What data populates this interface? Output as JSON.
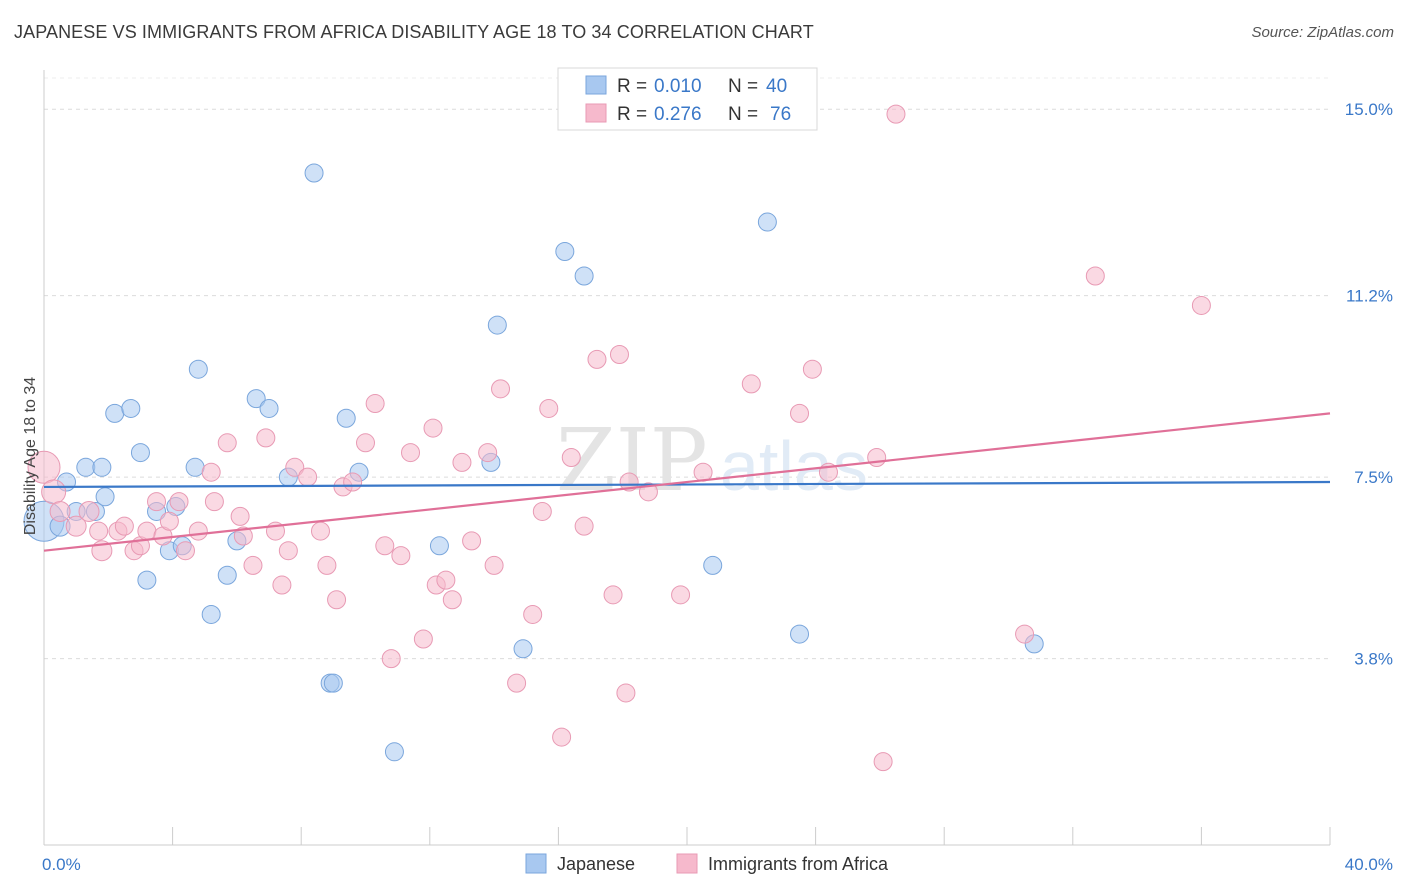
{
  "title": "JAPANESE VS IMMIGRANTS FROM AFRICA DISABILITY AGE 18 TO 34 CORRELATION CHART",
  "source": "Source: ZipAtlas.com",
  "watermark": {
    "zip": "ZIP",
    "atlas": "atlas"
  },
  "chart_data": {
    "type": "scatter",
    "ylabel": "Disability Age 18 to 34",
    "xlim": [
      0,
      40
    ],
    "ylim": [
      0,
      15.8
    ],
    "x_tick_labels": [
      "0.0%",
      "40.0%"
    ],
    "y_ticks": [
      3.8,
      7.5,
      11.2,
      15.0
    ],
    "y_tick_labels": [
      "3.8%",
      "7.5%",
      "11.2%",
      "15.0%"
    ],
    "grid": true,
    "legend": {
      "placement": "top-center",
      "entries": [
        {
          "r_label": "R =",
          "r_value": "0.010",
          "n_label": "N =",
          "n_value": "40"
        },
        {
          "r_label": "R =",
          "r_value": "0.276",
          "n_label": "N =",
          "n_value": "76"
        }
      ]
    },
    "colors": {
      "japanese_fill": "#a8c8f0",
      "japanese_line": "#3a78c8",
      "africa_fill": "#f6b9cc",
      "africa_line": "#e07098",
      "axis_text": "#3a78c8"
    },
    "series": [
      {
        "name": "Japanese",
        "trend": {
          "x": [
            0,
            40
          ],
          "y": [
            7.3,
            7.4
          ]
        },
        "points": [
          [
            0.0,
            6.6,
            20
          ],
          [
            0.5,
            6.5,
            10
          ],
          [
            0.7,
            7.4,
            9
          ],
          [
            1.0,
            6.8,
            9
          ],
          [
            1.3,
            7.7,
            9
          ],
          [
            1.6,
            6.8,
            9
          ],
          [
            1.8,
            7.7,
            9
          ],
          [
            1.9,
            7.1,
            9
          ],
          [
            2.2,
            8.8,
            9
          ],
          [
            2.7,
            8.9,
            9
          ],
          [
            3.0,
            8.0,
            9
          ],
          [
            3.2,
            5.4,
            9
          ],
          [
            3.5,
            6.8,
            9
          ],
          [
            3.9,
            6.0,
            9
          ],
          [
            4.1,
            6.9,
            9
          ],
          [
            4.3,
            6.1,
            9
          ],
          [
            4.7,
            7.7,
            9
          ],
          [
            4.8,
            9.7,
            9
          ],
          [
            5.2,
            4.7,
            9
          ],
          [
            5.7,
            5.5,
            9
          ],
          [
            6.0,
            6.2,
            9
          ],
          [
            6.6,
            9.1,
            9
          ],
          [
            7.0,
            8.9,
            9
          ],
          [
            7.6,
            7.5,
            9
          ],
          [
            8.4,
            13.7,
            9
          ],
          [
            8.9,
            3.3,
            9
          ],
          [
            9.0,
            3.3,
            9
          ],
          [
            9.4,
            8.7,
            9
          ],
          [
            9.8,
            7.6,
            9
          ],
          [
            10.9,
            1.9,
            9
          ],
          [
            12.3,
            6.1,
            9
          ],
          [
            13.9,
            7.8,
            9
          ],
          [
            14.1,
            10.6,
            9
          ],
          [
            14.9,
            4.0,
            9
          ],
          [
            16.2,
            12.1,
            9
          ],
          [
            16.8,
            11.6,
            9
          ],
          [
            20.8,
            5.7,
            9
          ],
          [
            22.5,
            12.7,
            9
          ],
          [
            23.5,
            4.3,
            9
          ],
          [
            30.8,
            4.1,
            9
          ]
        ]
      },
      {
        "name": "Immigrants from Africa",
        "trend": {
          "x": [
            0,
            40
          ],
          "y": [
            6.0,
            8.8
          ]
        },
        "points": [
          [
            0.0,
            7.7,
            16
          ],
          [
            0.3,
            7.2,
            12
          ],
          [
            0.5,
            6.8,
            10
          ],
          [
            1.0,
            6.5,
            10
          ],
          [
            1.4,
            6.8,
            10
          ],
          [
            1.7,
            6.4,
            9
          ],
          [
            1.8,
            6.0,
            10
          ],
          [
            2.3,
            6.4,
            9
          ],
          [
            2.5,
            6.5,
            9
          ],
          [
            2.8,
            6.0,
            9
          ],
          [
            3.0,
            6.1,
            9
          ],
          [
            3.2,
            6.4,
            9
          ],
          [
            3.5,
            7.0,
            9
          ],
          [
            3.7,
            6.3,
            9
          ],
          [
            3.9,
            6.6,
            9
          ],
          [
            4.2,
            7.0,
            9
          ],
          [
            4.4,
            6.0,
            9
          ],
          [
            4.8,
            6.4,
            9
          ],
          [
            5.2,
            7.6,
            9
          ],
          [
            5.3,
            7.0,
            9
          ],
          [
            5.7,
            8.2,
            9
          ],
          [
            6.2,
            6.3,
            9
          ],
          [
            6.1,
            6.7,
            9
          ],
          [
            6.5,
            5.7,
            9
          ],
          [
            6.9,
            8.3,
            9
          ],
          [
            7.2,
            6.4,
            9
          ],
          [
            7.4,
            5.3,
            9
          ],
          [
            7.8,
            7.7,
            9
          ],
          [
            7.6,
            6.0,
            9
          ],
          [
            8.2,
            7.5,
            9
          ],
          [
            8.6,
            6.4,
            9
          ],
          [
            8.8,
            5.7,
            9
          ],
          [
            9.1,
            5.0,
            9
          ],
          [
            9.3,
            7.3,
            9
          ],
          [
            9.6,
            7.4,
            9
          ],
          [
            10.0,
            8.2,
            9
          ],
          [
            10.3,
            9.0,
            9
          ],
          [
            10.6,
            6.1,
            9
          ],
          [
            10.8,
            3.8,
            9
          ],
          [
            11.1,
            5.9,
            9
          ],
          [
            11.4,
            8.0,
            9
          ],
          [
            11.8,
            4.2,
            9
          ],
          [
            12.1,
            8.5,
            9
          ],
          [
            12.2,
            5.3,
            9
          ],
          [
            12.5,
            5.4,
            9
          ],
          [
            12.7,
            5.0,
            9
          ],
          [
            13.0,
            7.8,
            9
          ],
          [
            13.3,
            6.2,
            9
          ],
          [
            13.8,
            8.0,
            9
          ],
          [
            14.0,
            5.7,
            9
          ],
          [
            14.2,
            9.3,
            9
          ],
          [
            14.7,
            3.3,
            9
          ],
          [
            15.2,
            4.7,
            9
          ],
          [
            15.5,
            6.8,
            9
          ],
          [
            15.7,
            8.9,
            9
          ],
          [
            16.1,
            2.2,
            9
          ],
          [
            16.4,
            7.9,
            9
          ],
          [
            16.8,
            6.5,
            9
          ],
          [
            17.2,
            9.9,
            9
          ],
          [
            17.7,
            5.1,
            9
          ],
          [
            17.9,
            10.0,
            9
          ],
          [
            18.1,
            3.1,
            9
          ],
          [
            18.2,
            7.4,
            9
          ],
          [
            18.8,
            7.2,
            9
          ],
          [
            19.8,
            5.1,
            9
          ],
          [
            20.5,
            7.6,
            9
          ],
          [
            22.0,
            9.4,
            9
          ],
          [
            23.5,
            8.8,
            9
          ],
          [
            23.9,
            9.7,
            9
          ],
          [
            24.4,
            7.6,
            9
          ],
          [
            25.9,
            7.9,
            9
          ],
          [
            26.5,
            14.9,
            9
          ],
          [
            26.1,
            1.7,
            9
          ],
          [
            30.5,
            4.3,
            9
          ],
          [
            32.7,
            11.6,
            9
          ],
          [
            36.0,
            11.0,
            9
          ]
        ]
      }
    ]
  }
}
